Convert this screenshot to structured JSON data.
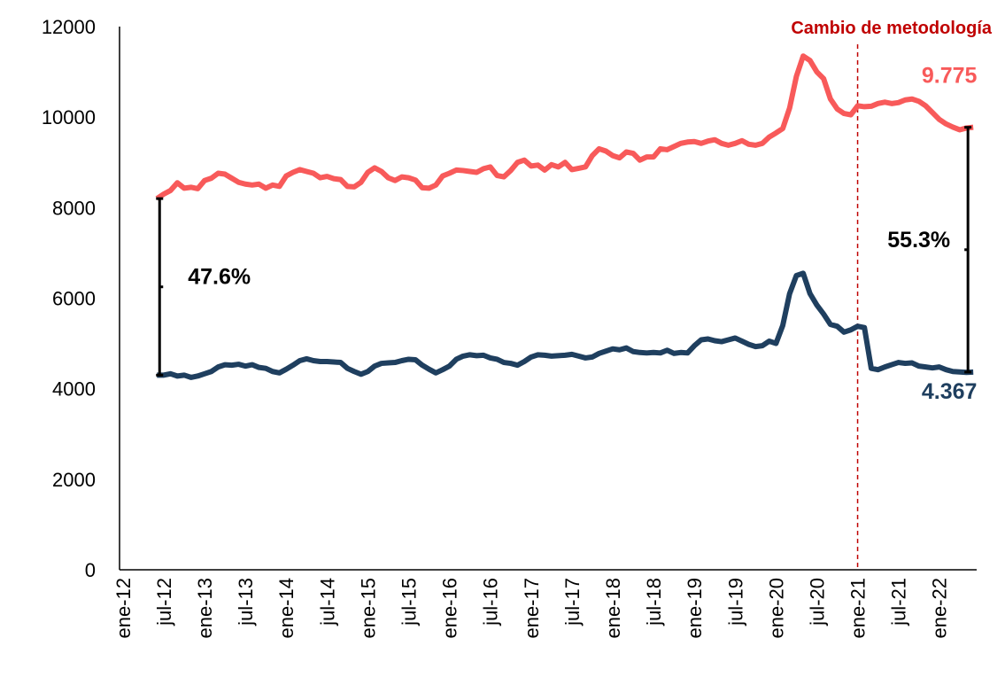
{
  "chart_data": {
    "type": "line",
    "categories": [
      "ene-12",
      null,
      null,
      null,
      null,
      null,
      "jul-12",
      null,
      null,
      null,
      null,
      null,
      "ene-13",
      null,
      null,
      null,
      null,
      null,
      "jul-13",
      null,
      null,
      null,
      null,
      null,
      "ene-14",
      null,
      null,
      null,
      null,
      null,
      "jul-14",
      null,
      null,
      null,
      null,
      null,
      "ene-15",
      null,
      null,
      null,
      null,
      null,
      "jul-15",
      null,
      null,
      null,
      null,
      null,
      "ene-16",
      null,
      null,
      null,
      null,
      null,
      "jul-16",
      null,
      null,
      null,
      null,
      null,
      "ene-17",
      null,
      null,
      null,
      null,
      null,
      "jul-17",
      null,
      null,
      null,
      null,
      null,
      "ene-18",
      null,
      null,
      null,
      null,
      null,
      "jul-18",
      null,
      null,
      null,
      null,
      null,
      "ene-19",
      null,
      null,
      null,
      null,
      null,
      "jul-19",
      null,
      null,
      null,
      null,
      null,
      "ene-20",
      null,
      null,
      null,
      null,
      null,
      "jul-20",
      null,
      null,
      null,
      null,
      null,
      "ene-21",
      null,
      null,
      null,
      null,
      null,
      "jul-21",
      null,
      null,
      null,
      null,
      null,
      "ene-22",
      null,
      null,
      null,
      null,
      null
    ],
    "series": [
      {
        "color": "#f85a5a",
        "values": [
          null,
          null,
          null,
          null,
          null,
          8200,
          8300,
          8380,
          8550,
          8430,
          8450,
          8420,
          8600,
          8650,
          8760,
          8740,
          8650,
          8560,
          8520,
          8500,
          8520,
          8430,
          8500,
          8470,
          8700,
          8780,
          8840,
          8800,
          8760,
          8660,
          8690,
          8640,
          8620,
          8470,
          8460,
          8560,
          8780,
          8880,
          8800,
          8660,
          8600,
          8680,
          8660,
          8610,
          8440,
          8430,
          8500,
          8700,
          8760,
          8830,
          8820,
          8800,
          8780,
          8860,
          8900,
          8710,
          8680,
          8820,
          9000,
          9050,
          8920,
          8940,
          8830,
          8950,
          8900,
          9000,
          8840,
          8870,
          8900,
          9150,
          9300,
          9250,
          9150,
          9100,
          9230,
          9200,
          9050,
          9120,
          9120,
          9300,
          9280,
          9350,
          9420,
          9450,
          9460,
          9420,
          9470,
          9500,
          9420,
          9380,
          9420,
          9480,
          9400,
          9380,
          9420,
          9560,
          9650,
          9750,
          10200,
          10900,
          11350,
          11250,
          11000,
          10850,
          10400,
          10180,
          10080,
          10050,
          10250,
          10230,
          10240,
          10300,
          10330,
          10300,
          10320,
          10380,
          10400,
          10350,
          10250,
          10100,
          9950,
          9850,
          9780,
          9720,
          9760,
          9775
        ],
        "value_labels": [
          null,
          null,
          null,
          null,
          null,
          null,
          null,
          null,
          null,
          null,
          null,
          null,
          null,
          null,
          null,
          null,
          null,
          null,
          null,
          null,
          null,
          null,
          null,
          null,
          null,
          null,
          null,
          null,
          null,
          null,
          null,
          null,
          null,
          null,
          null,
          null,
          null,
          null,
          null,
          null,
          null,
          null,
          null,
          null,
          null,
          null,
          null,
          null,
          null,
          null,
          null,
          null,
          null,
          null,
          null,
          null,
          null,
          null,
          null,
          null,
          null,
          null,
          null,
          null,
          null,
          null,
          null,
          null,
          null,
          null,
          null,
          null,
          null,
          null,
          null,
          null,
          null,
          null,
          null,
          null,
          null,
          null,
          null,
          null,
          null,
          null,
          null,
          null,
          null,
          null,
          null,
          null,
          null,
          null,
          null,
          null,
          null,
          null,
          null,
          null,
          null,
          null,
          null,
          null,
          null,
          null,
          null,
          null,
          null,
          null,
          null,
          null,
          null,
          null,
          null,
          null,
          null,
          null,
          null,
          null,
          null,
          null,
          null,
          null,
          null,
          "9.775"
        ]
      },
      {
        "color": "#1f3f5f",
        "values": [
          null,
          null,
          null,
          null,
          null,
          4300,
          4300,
          4330,
          4280,
          4300,
          4250,
          4280,
          4330,
          4380,
          4480,
          4530,
          4520,
          4540,
          4500,
          4530,
          4470,
          4450,
          4380,
          4350,
          4430,
          4520,
          4620,
          4660,
          4620,
          4600,
          4600,
          4590,
          4580,
          4450,
          4380,
          4320,
          4380,
          4500,
          4560,
          4570,
          4580,
          4620,
          4650,
          4640,
          4520,
          4430,
          4350,
          4420,
          4500,
          4650,
          4720,
          4750,
          4730,
          4740,
          4680,
          4650,
          4580,
          4560,
          4520,
          4600,
          4700,
          4750,
          4740,
          4720,
          4730,
          4740,
          4760,
          4720,
          4680,
          4700,
          4780,
          4830,
          4880,
          4860,
          4900,
          4820,
          4800,
          4790,
          4800,
          4790,
          4850,
          4780,
          4800,
          4790,
          4950,
          5080,
          5100,
          5060,
          5040,
          5080,
          5120,
          5050,
          4980,
          4930,
          4950,
          5050,
          5000,
          5400,
          6100,
          6500,
          6550,
          6100,
          5850,
          5650,
          5420,
          5380,
          5250,
          5300,
          5380,
          5350,
          4450,
          4420,
          4480,
          4530,
          4580,
          4560,
          4570,
          4500,
          4480,
          4460,
          4480,
          4420,
          4380,
          4370,
          4360,
          4367
        ],
        "value_labels": [
          null,
          null,
          null,
          null,
          null,
          null,
          null,
          null,
          null,
          null,
          null,
          null,
          null,
          null,
          null,
          null,
          null,
          null,
          null,
          null,
          null,
          null,
          null,
          null,
          null,
          null,
          null,
          null,
          null,
          null,
          null,
          null,
          null,
          null,
          null,
          null,
          null,
          null,
          null,
          null,
          null,
          null,
          null,
          null,
          null,
          null,
          null,
          null,
          null,
          null,
          null,
          null,
          null,
          null,
          null,
          null,
          null,
          null,
          null,
          null,
          null,
          null,
          null,
          null,
          null,
          null,
          null,
          null,
          null,
          null,
          null,
          null,
          null,
          null,
          null,
          null,
          null,
          null,
          null,
          null,
          null,
          null,
          null,
          null,
          null,
          null,
          null,
          null,
          null,
          null,
          null,
          null,
          null,
          null,
          null,
          null,
          null,
          null,
          null,
          null,
          null,
          null,
          null,
          null,
          null,
          null,
          null,
          null,
          null,
          null,
          null,
          null,
          null,
          null,
          null,
          null,
          null,
          null,
          null,
          null,
          null,
          null,
          null,
          null,
          null,
          "4.367"
        ]
      }
    ],
    "ylim": [
      0,
      12000
    ],
    "yticks": [
      0,
      2000,
      4000,
      6000,
      8000,
      10000,
      12000
    ],
    "vline": {
      "category": "ene-21",
      "label": "Cambio de metodología",
      "color": "#c00000"
    },
    "gap_labels": [
      "47.6%",
      "55.3%"
    ]
  }
}
